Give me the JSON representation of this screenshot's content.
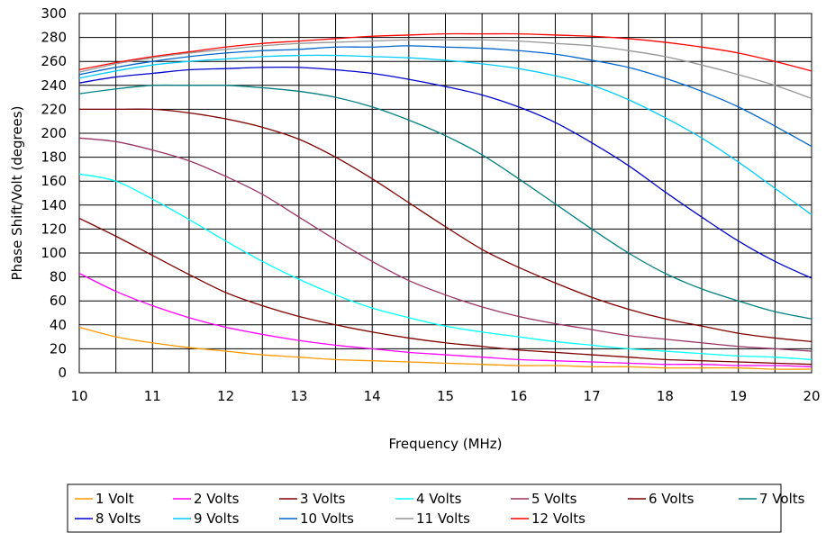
{
  "chart_data": {
    "type": "line",
    "xlabel": "Frequency (MHz)",
    "ylabel": "Phase Shift/Volt (degrees)",
    "xlim": [
      10,
      20
    ],
    "ylim": [
      0,
      300
    ],
    "x_ticks": [
      "10",
      "11",
      "12",
      "13",
      "14",
      "15",
      "16",
      "17",
      "18",
      "19",
      "20"
    ],
    "y_ticks": [
      "0",
      "20",
      "40",
      "60",
      "80",
      "100",
      "120",
      "140",
      "160",
      "180",
      "200",
      "220",
      "240",
      "260",
      "280",
      "300"
    ],
    "x_grid_step": 0.5,
    "grid": true,
    "legend_position": "bottom",
    "x": [
      10,
      10.5,
      11,
      11.5,
      12,
      12.5,
      13,
      13.5,
      14,
      14.5,
      15,
      15.5,
      16,
      16.5,
      17,
      17.5,
      18,
      18.5,
      19,
      19.5,
      20
    ],
    "series": [
      {
        "name": "1 Volt",
        "color": "#ff9900",
        "values": [
          38,
          30,
          25,
          21,
          18,
          15,
          13,
          11,
          10,
          9,
          8,
          7,
          6,
          6,
          5,
          5,
          4,
          4,
          4,
          3,
          3
        ]
      },
      {
        "name": "2 Volts",
        "color": "#ff00ff",
        "values": [
          83,
          68,
          56,
          46,
          38,
          32,
          27,
          23,
          20,
          17,
          15,
          13,
          11,
          10,
          9,
          8,
          7,
          7,
          6,
          6,
          5
        ]
      },
      {
        "name": "3 Volts",
        "color": "#800000",
        "values": [
          129,
          114,
          98,
          82,
          67,
          56,
          47,
          40,
          34,
          29,
          25,
          22,
          19,
          17,
          15,
          13,
          11,
          10,
          9,
          8,
          7
        ]
      },
      {
        "name": "4 Volts",
        "color": "#00ffff",
        "values": [
          166,
          160,
          145,
          128,
          110,
          93,
          78,
          65,
          54,
          46,
          39,
          34,
          30,
          26,
          23,
          20,
          18,
          16,
          14,
          13,
          11
        ]
      },
      {
        "name": "5 Volts",
        "color": "#993366",
        "values": [
          196,
          193,
          186,
          177,
          164,
          149,
          130,
          111,
          93,
          77,
          65,
          55,
          47,
          41,
          36,
          31,
          28,
          25,
          22,
          20,
          18
        ]
      },
      {
        "name": "6 Volts",
        "color": "#800000",
        "values": [
          220,
          220,
          220,
          217,
          212,
          205,
          195,
          180,
          162,
          142,
          122,
          103,
          88,
          75,
          63,
          53,
          45,
          39,
          33,
          29,
          26
        ]
      },
      {
        "name": "7 Volts",
        "color": "#008080",
        "values": [
          233,
          237,
          240,
          240,
          240,
          238,
          235,
          230,
          222,
          211,
          198,
          182,
          162,
          141,
          120,
          100,
          83,
          70,
          60,
          51,
          45
        ]
      },
      {
        "name": "8 Volts",
        "color": "#0000cc",
        "values": [
          242,
          247,
          250,
          253,
          254,
          255,
          255,
          253,
          250,
          245,
          239,
          232,
          222,
          209,
          192,
          173,
          151,
          130,
          110,
          93,
          79
        ]
      },
      {
        "name": "9 Volts",
        "color": "#00ccff",
        "values": [
          246,
          252,
          257,
          260,
          262,
          264,
          265,
          265,
          264,
          263,
          261,
          258,
          254,
          248,
          240,
          228,
          213,
          196,
          176,
          154,
          132
        ]
      },
      {
        "name": "10 Volts",
        "color": "#0066cc",
        "values": [
          249,
          255,
          260,
          264,
          267,
          269,
          270,
          272,
          272,
          273,
          272,
          271,
          269,
          266,
          261,
          255,
          246,
          235,
          222,
          206,
          189
        ]
      },
      {
        "name": "11 Volts",
        "color": "#969696",
        "values": [
          251,
          258,
          263,
          267,
          270,
          273,
          275,
          276,
          277,
          278,
          278,
          278,
          277,
          275,
          273,
          269,
          264,
          257,
          249,
          240,
          229
        ]
      },
      {
        "name": "12 Volts",
        "color": "#ff0000",
        "values": [
          253,
          259,
          264,
          268,
          272,
          275,
          277,
          279,
          281,
          282,
          283,
          283,
          283,
          282,
          281,
          279,
          276,
          272,
          267,
          260,
          252
        ]
      }
    ]
  }
}
